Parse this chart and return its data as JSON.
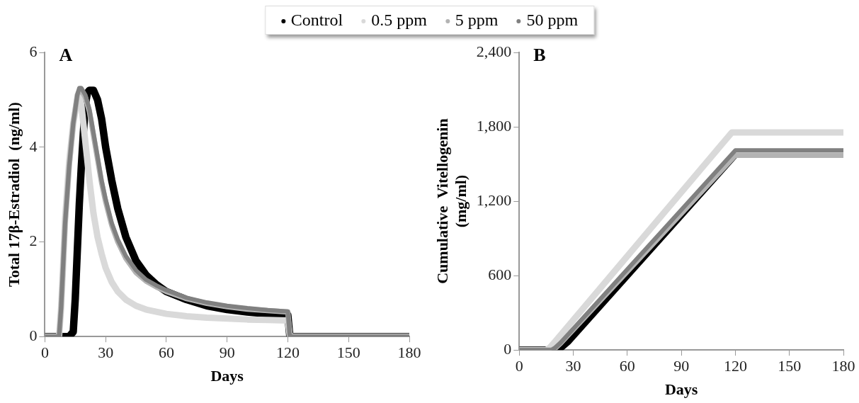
{
  "chart_data": [
    {
      "type": "line",
      "title": "A",
      "xlabel": "Days",
      "ylabel": "Total 17β-Estradiol  (ng/ml)",
      "xlim": [
        0,
        180
      ],
      "xticks": [
        0,
        30,
        60,
        90,
        120,
        150,
        180
      ],
      "ylim": [
        0,
        6
      ],
      "yticks": [
        0,
        2,
        4,
        6
      ],
      "grid": false,
      "legend": "top",
      "line_style": "solid",
      "series": [
        {
          "name": "Control",
          "color": "#000000",
          "x": [
            0,
            12,
            14,
            15,
            16,
            17,
            18,
            19,
            20,
            21,
            22,
            24,
            26,
            28,
            30,
            33,
            36,
            40,
            45,
            50,
            55,
            60,
            70,
            80,
            90,
            100,
            110,
            119,
            120,
            121,
            150,
            180
          ],
          "values": [
            0,
            0,
            0.1,
            0.8,
            1.8,
            2.8,
            3.6,
            4.3,
            4.9,
            5.15,
            5.2,
            5.2,
            5.0,
            4.6,
            4.0,
            3.3,
            2.7,
            2.1,
            1.6,
            1.3,
            1.1,
            0.95,
            0.78,
            0.65,
            0.57,
            0.52,
            0.48,
            0.45,
            0.45,
            0,
            0,
            0
          ]
        },
        {
          "name": "0.5 ppm",
          "color": "#d9d9d9",
          "x": [
            0,
            7,
            8,
            9,
            10,
            12,
            14,
            16,
            17,
            18,
            20,
            22,
            24,
            26,
            28,
            30,
            33,
            36,
            40,
            45,
            50,
            60,
            70,
            80,
            90,
            100,
            110,
            120,
            121,
            180
          ],
          "values": [
            0,
            0,
            0.6,
            1.5,
            2.5,
            3.7,
            4.5,
            5.0,
            5.1,
            4.9,
            4.1,
            3.3,
            2.6,
            2.1,
            1.75,
            1.45,
            1.15,
            0.95,
            0.78,
            0.65,
            0.57,
            0.48,
            0.43,
            0.4,
            0.38,
            0.36,
            0.35,
            0.34,
            0,
            0
          ]
        },
        {
          "name": "5 ppm",
          "color": "#b3b3b3",
          "x": [
            0,
            7,
            8,
            9,
            10,
            12,
            14,
            16,
            17,
            18,
            20,
            22,
            24,
            26,
            28,
            30,
            33,
            36,
            40,
            45,
            50,
            55,
            60,
            70,
            80,
            90,
            100,
            110,
            120,
            121,
            180
          ],
          "values": [
            0,
            0,
            0.6,
            1.5,
            2.4,
            3.6,
            4.5,
            5.1,
            5.2,
            5.2,
            5.05,
            4.75,
            4.25,
            3.75,
            3.25,
            2.85,
            2.35,
            2.0,
            1.65,
            1.35,
            1.17,
            1.05,
            0.95,
            0.8,
            0.7,
            0.63,
            0.58,
            0.55,
            0.52,
            0,
            0
          ]
        },
        {
          "name": "50 ppm",
          "color": "#808080",
          "x": [
            0,
            7,
            8,
            9,
            10,
            12,
            14,
            16,
            17,
            18,
            20,
            22,
            24,
            26,
            28,
            30,
            33,
            36,
            40,
            45,
            50,
            55,
            60,
            70,
            80,
            90,
            100,
            110,
            120,
            121,
            180
          ],
          "values": [
            0,
            0,
            0.6,
            1.5,
            2.4,
            3.6,
            4.5,
            5.1,
            5.25,
            5.25,
            5.1,
            4.8,
            4.3,
            3.8,
            3.3,
            2.9,
            2.4,
            2.05,
            1.7,
            1.4,
            1.2,
            1.08,
            0.98,
            0.82,
            0.72,
            0.65,
            0.6,
            0.56,
            0.53,
            0,
            0
          ]
        }
      ]
    },
    {
      "type": "line",
      "title": "B",
      "xlabel": "Days",
      "ylabel": "Cumulative  Vitellogenin\n(mg/ml)",
      "xlim": [
        0,
        180
      ],
      "xticks": [
        0,
        30,
        60,
        90,
        120,
        150,
        180
      ],
      "ylim": [
        0,
        2400
      ],
      "yticks": [
        0,
        {
          "value": 600,
          "label": "600"
        },
        {
          "value": 1200,
          "label": "1,200"
        },
        {
          "value": 1800,
          "label": "1,800"
        },
        {
          "value": 2400,
          "label": "2,400"
        }
      ],
      "grid": false,
      "line_style": "solid",
      "series": [
        {
          "color": "#000000",
          "x": [
            0,
            20,
            23,
            27,
            120
          ],
          "values": [
            0,
            0,
            20,
            70,
            1580
          ]
        },
        {
          "color": "#d9d9d9",
          "x": [
            0,
            15,
            17,
            20,
            118,
            180
          ],
          "values": [
            0,
            0,
            20,
            70,
            1754,
            1754
          ]
        },
        {
          "color": "#b3b3b3",
          "x": [
            0,
            18,
            20,
            23,
            120,
            180
          ],
          "values": [
            0,
            0,
            15,
            55,
            1570,
            1570
          ]
        },
        {
          "color": "#808080",
          "x": [
            0,
            18,
            20,
            23,
            120,
            180
          ],
          "values": [
            0,
            0,
            20,
            60,
            1610,
            1610
          ]
        }
      ]
    }
  ]
}
